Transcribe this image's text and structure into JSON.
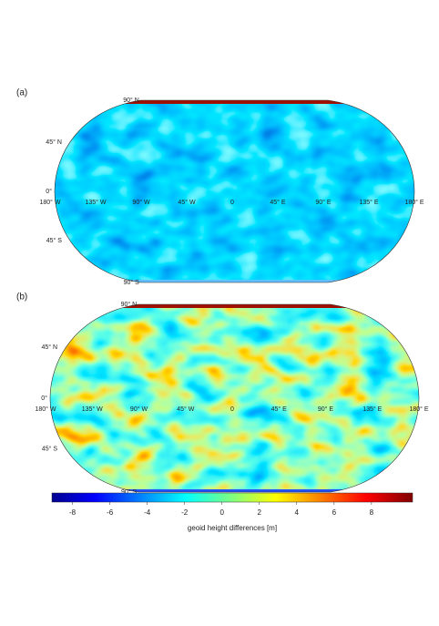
{
  "panels": [
    {
      "label": "(a)",
      "lat_labels": [
        "90° N",
        "45° N",
        "0°",
        "45° S",
        "90° S"
      ],
      "lon_labels": [
        "180° W",
        "135° W",
        "90° W",
        "45° W",
        "0",
        "45° E",
        "90° E",
        "135° E",
        "180° E"
      ]
    },
    {
      "label": "(b)",
      "lat_labels": [
        "90° N",
        "45° N",
        "0°",
        "45° S",
        "90° S"
      ],
      "lon_labels": [
        "180° W",
        "135° W",
        "90° W",
        "45° W",
        "0",
        "45° E",
        "90° E",
        "135° E",
        "180° E"
      ]
    }
  ],
  "colorbar": {
    "label": "geoid height differences [m]",
    "clim": [
      -9.1,
      10.2
    ],
    "ticks": [
      -8,
      -6,
      -4,
      -2,
      0,
      2,
      4,
      6,
      8
    ],
    "colormap": "jet"
  }
}
